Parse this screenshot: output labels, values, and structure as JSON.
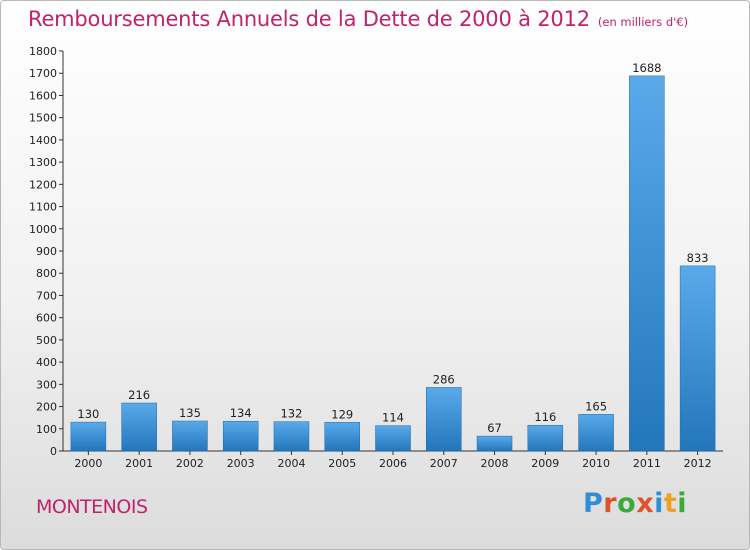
{
  "header": {
    "title": "Remboursements Annuels de la Dette de 2000 à 2012",
    "subtitle": "(en milliers d'€)"
  },
  "footer": {
    "city": "MONTENOIS",
    "logo_letters": [
      "P",
      "r",
      "o",
      "x",
      "i",
      "t",
      "i"
    ],
    "logo_colors": [
      "#2e8fd8",
      "#e0522b",
      "#3aab3a",
      "#e0522b",
      "#2e8fd8",
      "#f0a020",
      "#3aab3a"
    ]
  },
  "chart_data": {
    "type": "bar",
    "categories": [
      "2000",
      "2001",
      "2002",
      "2003",
      "2004",
      "2005",
      "2006",
      "2007",
      "2008",
      "2009",
      "2010",
      "2011",
      "2012"
    ],
    "values": [
      130,
      216,
      135,
      134,
      132,
      129,
      114,
      286,
      67,
      116,
      165,
      1688,
      833
    ],
    "ylim": [
      0,
      1800
    ],
    "ytick_step": 100,
    "grid": false,
    "colors": {
      "bar_light": "#5aaaea",
      "bar_dark": "#2276ba",
      "axis": "#333333"
    }
  }
}
